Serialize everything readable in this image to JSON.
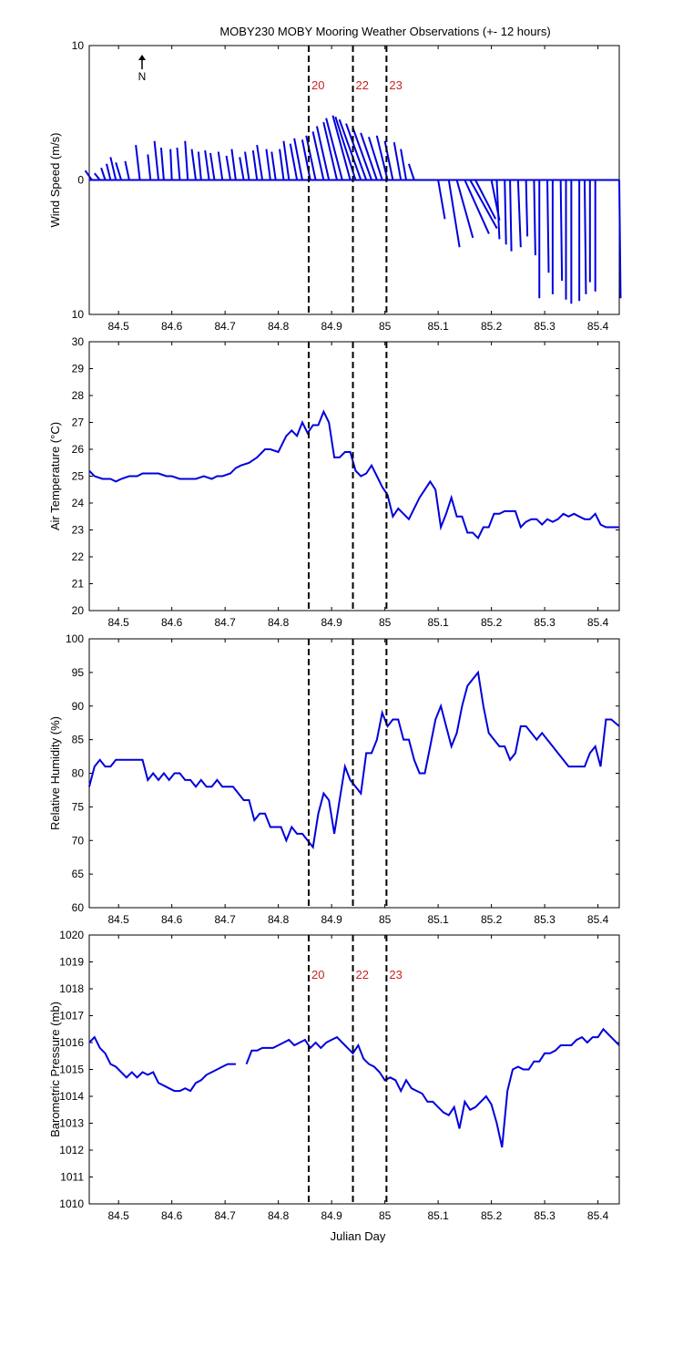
{
  "title": "MOBY230 MOBY Mooring Weather Observations (+- 12 hours)",
  "colors": {
    "series": "#0000dd",
    "event_label": "#cc2222",
    "axes": "#000000"
  },
  "north_arrow_label": "N",
  "xlabel": "Julian Day",
  "chart_data": [
    {
      "type": "line",
      "subtype": "wind-vector-stick",
      "ylabel": "Wind Speed (m/s)",
      "xlim": [
        84.445,
        85.44
      ],
      "ylim": [
        -10,
        10
      ],
      "y_tick_values": [
        -10,
        0,
        10
      ],
      "y_tick_labels": [
        "10",
        "0",
        "10"
      ],
      "x_tick_values": [
        84.5,
        84.6,
        84.7,
        84.8,
        84.9,
        85.0,
        85.1,
        85.2,
        85.3,
        85.4
      ],
      "x_tick_labels": [
        "84.5",
        "84.6",
        "84.7",
        "84.8",
        "84.9",
        "85",
        "85.1",
        "85.2",
        "85.3",
        "85.4"
      ],
      "event_lines": [
        84.857,
        84.94,
        85.003
      ],
      "event_labels": [
        "20",
        "22",
        "23"
      ],
      "series": [
        {
          "u": [
            -0.5,
            -0.4,
            -0.3,
            -0.3,
            -0.4,
            -0.4,
            -0.3,
            -0.3,
            -0.2,
            -0.3,
            -0.2,
            -0.1,
            -0.2,
            -0.2,
            -0.3,
            -0.2,
            -0.3,
            -0.3,
            -0.3,
            -0.3,
            -0.3,
            -0.3,
            -0.3,
            -0.3,
            -0.4,
            -0.3,
            -0.3,
            -0.3,
            -0.4,
            -0.5,
            -0.6,
            -0.6,
            -0.7,
            -0.8,
            -0.9,
            -1.0,
            -1.2,
            -1.3,
            -1.5,
            -1.6,
            -1.5,
            -1.4,
            -1.2,
            -1.0,
            -0.8,
            -0.6,
            -0.5,
            -0.4,
            -0.4,
            0.5,
            0.8,
            1.2,
            1.8,
            2.0,
            1.5,
            0.6,
            0.2,
            0.1,
            0.1,
            0.2,
            0.1,
            0.1,
            0.0,
            0.1,
            0.0,
            0.1,
            0.0,
            0.0,
            0.0,
            0.1,
            0.0,
            0.0,
            0.1
          ],
          "v": [
            0.7,
            0.5,
            0.9,
            1.2,
            1.7,
            1.3,
            1.4,
            2.6,
            1.9,
            2.9,
            2.4,
            2.3,
            2.4,
            2.9,
            2.3,
            2.1,
            2.2,
            2.0,
            2.1,
            1.8,
            2.3,
            1.7,
            2.1,
            2.2,
            2.6,
            2.3,
            2.1,
            2.3,
            2.9,
            2.7,
            3.1,
            3.0,
            3.3,
            3.6,
            4.0,
            4.3,
            4.6,
            4.8,
            4.7,
            4.5,
            4.2,
            3.9,
            3.5,
            3.2,
            3.3,
            2.9,
            2.8,
            2.3,
            1.2,
            -2.9,
            -5.0,
            -4.3,
            -4.0,
            -3.6,
            -2.9,
            -3.0,
            -4.4,
            -4.8,
            -5.3,
            -5.0,
            -4.2,
            -5.6,
            -8.8,
            -6.9,
            -8.5,
            -7.5,
            -8.9,
            -9.2,
            -9.0,
            -8.5,
            -7.6,
            -8.3,
            -8.8
          ],
          "x": [
            84.45,
            84.465,
            84.475,
            84.485,
            84.495,
            84.505,
            84.52,
            84.54,
            84.56,
            84.575,
            84.585,
            84.6,
            84.615,
            84.63,
            84.645,
            84.655,
            84.67,
            84.68,
            84.695,
            84.71,
            84.72,
            84.735,
            84.745,
            84.76,
            84.77,
            84.785,
            84.795,
            84.81,
            84.82,
            84.835,
            84.845,
            84.86,
            84.87,
            84.885,
            84.895,
            84.91,
            84.92,
            84.935,
            84.945,
            84.955,
            84.965,
            84.975,
            84.985,
            84.995,
            85.005,
            85.015,
            85.03,
            85.04,
            85.055,
            85.1,
            85.12,
            85.135,
            85.15,
            85.16,
            85.17,
            85.2,
            85.21,
            85.225,
            85.235,
            85.25,
            85.265,
            85.28,
            85.29,
            85.305,
            85.315,
            85.33,
            85.34,
            85.35,
            85.365,
            85.375,
            85.385,
            85.395,
            85.44
          ]
        }
      ]
    },
    {
      "type": "line",
      "ylabel": "Air Temperature (°C)",
      "xlim": [
        84.445,
        85.44
      ],
      "ylim": [
        20,
        30
      ],
      "y_tick_values": [
        20,
        21,
        22,
        23,
        24,
        25,
        26,
        27,
        28,
        29,
        30
      ],
      "y_tick_labels": [
        "20",
        "21",
        "22",
        "23",
        "24",
        "25",
        "26",
        "27",
        "28",
        "29",
        "30"
      ],
      "x_tick_values": [
        84.5,
        84.6,
        84.7,
        84.8,
        84.9,
        85.0,
        85.1,
        85.2,
        85.3,
        85.4
      ],
      "x_tick_labels": [
        "84.5",
        "84.6",
        "84.7",
        "84.8",
        "84.9",
        "85",
        "85.1",
        "85.2",
        "85.3",
        "85.4"
      ],
      "event_lines": [
        84.857,
        84.94,
        85.003
      ],
      "series": [
        {
          "x": [
            84.445,
            84.455,
            84.47,
            84.485,
            84.495,
            84.505,
            84.52,
            84.535,
            84.545,
            84.56,
            84.575,
            84.59,
            84.6,
            84.615,
            84.63,
            84.645,
            84.66,
            84.675,
            84.685,
            84.695,
            84.71,
            84.72,
            84.73,
            84.745,
            84.76,
            84.775,
            84.785,
            84.8,
            84.81,
            84.815,
            84.825,
            84.835,
            84.845,
            84.855,
            84.865,
            84.875,
            84.885,
            84.895,
            84.905,
            84.915,
            84.925,
            84.935,
            84.945,
            84.955,
            84.965,
            84.975,
            84.985,
            84.995,
            85.005,
            85.015,
            85.025,
            85.035,
            85.045,
            85.055,
            85.065,
            85.075,
            85.085,
            85.095,
            85.105,
            85.115,
            85.125,
            85.135,
            85.145,
            85.155,
            85.165,
            85.175,
            85.185,
            85.195,
            85.205,
            85.215,
            85.225,
            85.235,
            85.245,
            85.255,
            85.265,
            85.275,
            85.285,
            85.295,
            85.305,
            85.315,
            85.325,
            85.335,
            85.345,
            85.355,
            85.365,
            85.375,
            85.385,
            85.395,
            85.405,
            85.415,
            85.425,
            85.44
          ],
          "values": [
            25.2,
            25.0,
            24.9,
            24.9,
            24.8,
            24.9,
            25.0,
            25.0,
            25.1,
            25.1,
            25.1,
            25.0,
            25.0,
            24.9,
            24.9,
            24.9,
            25.0,
            24.9,
            25.0,
            25.0,
            25.1,
            25.3,
            25.4,
            25.5,
            25.7,
            26.0,
            26.0,
            25.9,
            26.3,
            26.5,
            26.7,
            26.5,
            27.0,
            26.6,
            26.9,
            26.9,
            27.4,
            27.0,
            25.7,
            25.7,
            25.9,
            25.9,
            25.2,
            25.0,
            25.1,
            25.4,
            25.0,
            24.6,
            24.3,
            23.5,
            23.8,
            23.6,
            23.4,
            23.8,
            24.2,
            24.5,
            24.8,
            24.5,
            23.1,
            23.6,
            24.2,
            23.5,
            23.5,
            22.9,
            22.9,
            22.7,
            23.1,
            23.1,
            23.6,
            23.6,
            23.7,
            23.7,
            23.7,
            23.1,
            23.3,
            23.4,
            23.4,
            23.2,
            23.4,
            23.3,
            23.4,
            23.6,
            23.5,
            23.6,
            23.5,
            23.4,
            23.4,
            23.6,
            23.2,
            23.1,
            23.1,
            23.1
          ]
        }
      ]
    },
    {
      "type": "line",
      "ylabel": "Relative Humidity (%)",
      "xlim": [
        84.445,
        85.44
      ],
      "ylim": [
        60,
        100
      ],
      "y_tick_values": [
        60,
        65,
        70,
        75,
        80,
        85,
        90,
        95,
        100
      ],
      "y_tick_labels": [
        "60",
        "65",
        "70",
        "75",
        "80",
        "85",
        "90",
        "95",
        "100"
      ],
      "x_tick_values": [
        84.5,
        84.6,
        84.7,
        84.8,
        84.9,
        85.0,
        85.1,
        85.2,
        85.3,
        85.4
      ],
      "x_tick_labels": [
        "84.5",
        "84.6",
        "84.7",
        "84.8",
        "84.9",
        "85",
        "85.1",
        "85.2",
        "85.3",
        "85.4"
      ],
      "event_lines": [
        84.857,
        84.94,
        85.003
      ],
      "series": [
        {
          "x": [
            84.445,
            84.455,
            84.465,
            84.475,
            84.485,
            84.495,
            84.505,
            84.515,
            84.525,
            84.535,
            84.545,
            84.555,
            84.565,
            84.575,
            84.585,
            84.595,
            84.605,
            84.615,
            84.625,
            84.635,
            84.645,
            84.655,
            84.665,
            84.675,
            84.685,
            84.695,
            84.705,
            84.715,
            84.725,
            84.735,
            84.745,
            84.755,
            84.765,
            84.775,
            84.785,
            84.795,
            84.805,
            84.815,
            84.825,
            84.835,
            84.845,
            84.855,
            84.865,
            84.875,
            84.885,
            84.895,
            84.905,
            84.915,
            84.925,
            84.935,
            84.945,
            84.955,
            84.965,
            84.975,
            84.985,
            84.995,
            85.005,
            85.015,
            85.025,
            85.035,
            85.045,
            85.055,
            85.065,
            85.075,
            85.085,
            85.095,
            85.105,
            85.115,
            85.125,
            85.135,
            85.145,
            85.155,
            85.165,
            85.175,
            85.185,
            85.195,
            85.205,
            85.215,
            85.225,
            85.235,
            85.245,
            85.255,
            85.265,
            85.275,
            85.285,
            85.295,
            85.305,
            85.315,
            85.325,
            85.335,
            85.345,
            85.355,
            85.365,
            85.375,
            85.385,
            85.395,
            85.405,
            85.415,
            85.425,
            85.44
          ],
          "values": [
            78,
            81,
            82,
            81,
            81,
            82,
            82,
            82,
            82,
            82,
            82,
            79,
            80,
            79,
            80,
            79,
            80,
            80,
            79,
            79,
            78,
            79,
            78,
            78,
            79,
            78,
            78,
            78,
            77,
            76,
            76,
            73,
            74,
            74,
            72,
            72,
            72,
            70,
            72,
            71,
            71,
            70,
            69,
            74,
            77,
            76,
            71,
            76,
            81,
            79,
            78,
            77,
            83,
            83,
            85,
            89,
            87,
            88,
            88,
            85,
            85,
            82,
            80,
            80,
            84,
            88,
            90,
            87,
            84,
            86,
            90,
            93,
            94,
            95,
            90,
            86,
            85,
            84,
            84,
            82,
            83,
            87,
            87,
            86,
            85,
            86,
            85,
            84,
            83,
            82,
            81,
            81,
            81,
            81,
            83,
            84,
            81,
            88,
            88,
            87
          ]
        }
      ]
    },
    {
      "type": "line",
      "ylabel": "Barometric Pressure (mb)",
      "xlim": [
        84.445,
        85.44
      ],
      "ylim": [
        1010,
        1020
      ],
      "y_tick_values": [
        1010,
        1011,
        1012,
        1013,
        1014,
        1015,
        1016,
        1017,
        1018,
        1019,
        1020
      ],
      "y_tick_labels": [
        "1010",
        "1011",
        "1012",
        "1013",
        "1014",
        "1015",
        "1016",
        "1017",
        "1018",
        "1019",
        "1020"
      ],
      "x_tick_values": [
        84.5,
        84.6,
        84.7,
        84.8,
        84.9,
        85.0,
        85.1,
        85.2,
        85.3,
        85.4
      ],
      "x_tick_labels": [
        "84.5",
        "84.6",
        "84.7",
        "84.8",
        "84.9",
        "85",
        "85.1",
        "85.2",
        "85.3",
        "85.4"
      ],
      "event_lines": [
        84.857,
        84.94,
        85.003
      ],
      "event_labels": [
        "20",
        "22",
        "23"
      ],
      "series": [
        {
          "x": [
            84.445,
            84.455,
            84.465,
            84.475,
            84.485,
            84.495,
            84.505,
            84.515,
            84.525,
            84.535,
            84.545,
            84.555,
            84.565,
            84.575,
            84.585,
            84.595,
            84.605,
            84.615,
            84.625,
            84.635,
            84.645,
            84.655,
            84.665,
            84.675,
            84.685,
            84.695,
            84.705,
            84.72
          ],
          "values": [
            1016.0,
            1016.2,
            1015.8,
            1015.6,
            1015.2,
            1015.1,
            1014.9,
            1014.7,
            1014.9,
            1014.7,
            1014.9,
            1014.8,
            1014.9,
            1014.5,
            1014.4,
            1014.3,
            1014.2,
            1014.2,
            1014.3,
            1014.2,
            1014.5,
            1014.6,
            1014.8,
            1014.9,
            1015.0,
            1015.1,
            1015.2,
            1015.2
          ]
        },
        {
          "x": [
            84.74,
            84.75,
            84.76,
            84.77,
            84.78,
            84.79,
            84.8,
            84.81,
            84.82,
            84.83,
            84.84,
            84.85,
            84.86,
            84.87,
            84.88,
            84.89,
            84.9,
            84.91,
            84.92,
            84.93,
            84.94,
            84.95,
            84.96,
            84.97,
            84.98,
            84.99,
            85.0,
            85.01,
            85.02,
            85.03,
            85.04,
            85.05,
            85.06,
            85.07,
            85.08,
            85.09,
            85.1,
            85.11,
            85.12,
            85.13,
            85.14,
            85.15,
            85.16,
            85.17,
            85.18,
            85.19,
            85.2,
            85.21,
            85.22,
            85.23,
            85.24,
            85.25,
            85.26,
            85.27,
            85.28,
            85.29,
            85.3,
            85.31,
            85.32,
            85.33,
            85.34,
            85.35,
            85.36,
            85.37,
            85.38,
            85.39,
            85.4,
            85.41,
            85.42,
            85.44
          ],
          "values": [
            1015.2,
            1015.7,
            1015.7,
            1015.8,
            1015.8,
            1015.8,
            1015.9,
            1016.0,
            1016.1,
            1015.9,
            1016.0,
            1016.1,
            1015.8,
            1016.0,
            1015.8,
            1016.0,
            1016.1,
            1016.2,
            1016.0,
            1015.8,
            1015.6,
            1015.9,
            1015.4,
            1015.2,
            1015.1,
            1014.9,
            1014.6,
            1014.7,
            1014.6,
            1014.2,
            1014.6,
            1014.3,
            1014.2,
            1014.1,
            1013.8,
            1013.8,
            1013.6,
            1013.4,
            1013.3,
            1013.6,
            1012.8,
            1013.8,
            1013.5,
            1013.6,
            1013.8,
            1014.0,
            1013.7,
            1013.0,
            1012.1,
            1014.2,
            1015.0,
            1015.1,
            1015.0,
            1015.0,
            1015.3,
            1015.3,
            1015.6,
            1015.6,
            1015.7,
            1015.9,
            1015.9,
            1015.9,
            1016.1,
            1016.2,
            1016.0,
            1016.2,
            1016.2,
            1016.5,
            1016.3,
            1015.9
          ]
        }
      ]
    }
  ]
}
